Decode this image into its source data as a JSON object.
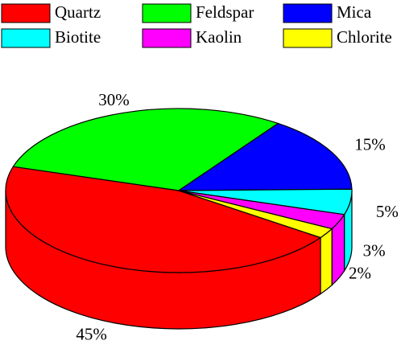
{
  "chart_data": {
    "type": "pie3d",
    "categories": [
      "Quartz",
      "Feldspar",
      "Mica",
      "Biotite",
      "Kaolin",
      "Chlorite"
    ],
    "values": [
      45,
      30,
      15,
      5,
      3,
      2
    ],
    "value_labels": [
      "45%",
      "30%",
      "15%",
      "5%",
      "3%",
      "2%"
    ],
    "colors": [
      "#ff0000",
      "#00ff00",
      "#0000ff",
      "#00ffff",
      "#ff00ff",
      "#ffff00"
    ]
  }
}
